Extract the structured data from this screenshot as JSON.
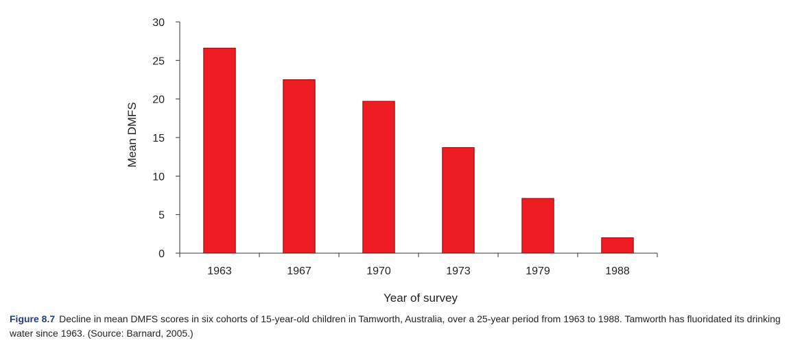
{
  "chart_data": {
    "type": "bar",
    "categories": [
      "1963",
      "1967",
      "1970",
      "1973",
      "1979",
      "1988"
    ],
    "values": [
      26.6,
      22.5,
      19.7,
      13.7,
      7.1,
      2.0
    ],
    "xlabel": "Year of survey",
    "ylabel": "Mean DMFS",
    "ylim": [
      0,
      30
    ],
    "yticks": [
      0,
      5,
      10,
      15,
      20,
      25,
      30
    ],
    "grid": false,
    "bar_color": "#ee1d24",
    "bar_edge_color": "#7a0a0e"
  },
  "caption": {
    "label": "Figure 8.7",
    "text": "Decline in mean DMFS scores in six cohorts of 15-year-old children in Tamworth, Australia, over a 25-year period from 1963 to 1988. Tamworth has fluoridated its drinking water since 1963. (Source: Barnard, 2005.)"
  }
}
